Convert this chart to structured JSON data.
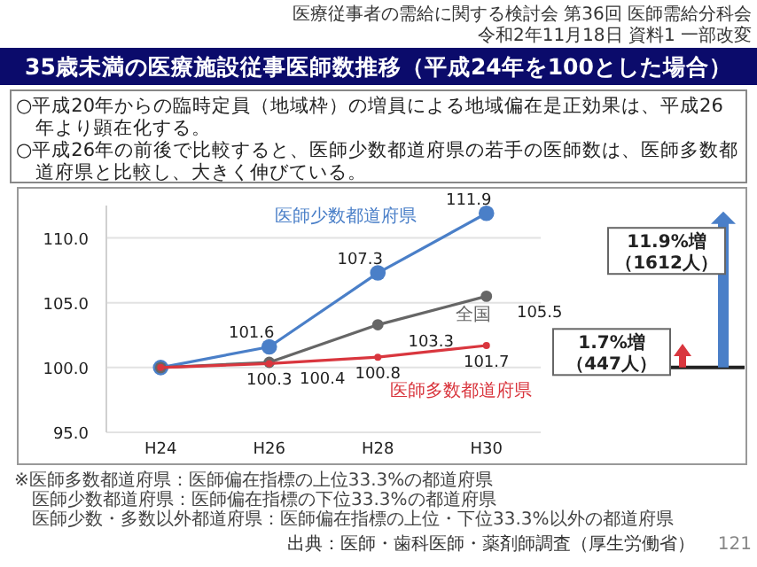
{
  "chart_data": {
    "type": "line",
    "title": "35歳未満の医療施設従事医師数推移（平成24年を100とした場合）",
    "subtitle": "○平成20年からの臨時定員（地域枠）の増員による地域偏在是正効果は、平成26年より顕在化する。\n○平成26年の前後で比較すると、医師少数都道府県の若手の医師数は、医師多数都道府県と比較し、大きく伸びている。",
    "categories": [
      "H24",
      "H26",
      "H28",
      "H30"
    ],
    "series": [
      {
        "name": "医師少数都道府県",
        "color": "#4a7fc8",
        "values": [
          100,
          101.6,
          107.3,
          111.9
        ],
        "value_labels": [
          null,
          "101.6",
          "107.3",
          "111.9"
        ]
      },
      {
        "name": "全国",
        "color": "#666666",
        "values": [
          100,
          100.4,
          103.3,
          105.5
        ],
        "value_labels": [
          null,
          "100.4",
          "103.3",
          "105.5"
        ]
      },
      {
        "name": "医師多数都道府県",
        "color": "#d9363e",
        "values": [
          100,
          100.3,
          100.8,
          101.7
        ],
        "value_labels": [
          null,
          "100.3",
          "100.8",
          "101.7"
        ]
      }
    ],
    "ylim": [
      95,
      112.5
    ],
    "yticks": [
      {
        "value": 95,
        "label": "95.0"
      },
      {
        "value": 100,
        "label": "100.0"
      },
      {
        "value": 105,
        "label": "105.0"
      },
      {
        "value": 110,
        "label": "110.0"
      }
    ],
    "grid": "y",
    "marker": "circle",
    "annotations": [
      "医療従事者の需給に関する検討会 第36回 医師需給分科会",
      "令和2年11月18日 資料1 一部改変",
      "11.9%増（1612人）",
      "1.7%増（447人）",
      "※医師多数都道府県：医師偏在指標の上位33.3%の都道府県",
      "医師少数都道府県：医師偏在指標の下位33.3%の都道府県",
      "医師少数・多数以外都道府県：医師偏在指標の上位・下位33.3%以外の都道府県",
      "出典：医師・歯科医師・薬剤師調査（厚生労働省）",
      "121"
    ]
  }
}
